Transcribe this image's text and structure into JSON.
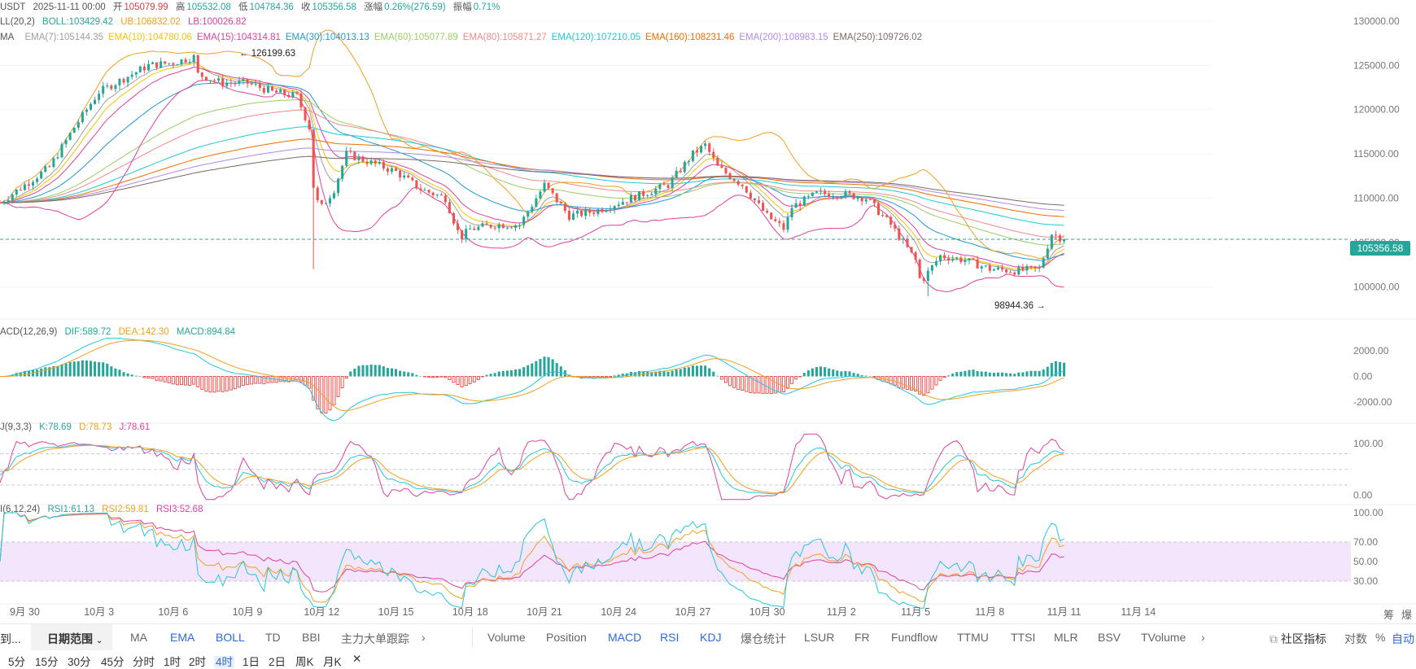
{
  "header": {
    "symbol": "USDT",
    "date": "2025-11-11 00:00",
    "open_label": "开",
    "open": "105079.99",
    "high_label": "高",
    "high": "105532.08",
    "low_label": "低",
    "low": "104784.36",
    "close_label": "收",
    "close": "105356.58",
    "change_label": "涨幅",
    "change": "0.26%(276.59)",
    "amp_label": "振幅",
    "amp": "0.71%"
  },
  "boll_legend": {
    "name": "LL(20,2)",
    "boll": "BOLL:103429.42",
    "ub": "UB:106832.02",
    "lb": "LB:100026.82"
  },
  "ema_legend": {
    "name": "MA",
    "items": [
      {
        "text": "EMA(7):105144.35",
        "color": "#9e9e9e"
      },
      {
        "text": "EMA(10):104780.06",
        "color": "#f5c400"
      },
      {
        "text": "EMA(15):104314.81",
        "color": "#e040a0"
      },
      {
        "text": "EMA(30):104013.13",
        "color": "#1e9bd6"
      },
      {
        "text": "EMA(60):105077.89",
        "color": "#9ccc65"
      },
      {
        "text": "EMA(80):105871.27",
        "color": "#ef8a8a"
      },
      {
        "text": "EMA(120):107210.05",
        "color": "#1fc8d4"
      },
      {
        "text": "EMA(160):108231.46",
        "color": "#ef6c00"
      },
      {
        "text": "EMA(200):108983.15",
        "color": "#b388eb"
      },
      {
        "text": "EMA(250):109726.02",
        "color": "#7b6a63"
      }
    ]
  },
  "macd_legend": {
    "name": "ACD(12,26,9)",
    "dif": "DIF:589.72",
    "dea": "DEA:142.30",
    "macd": "MACD:894.84"
  },
  "kdj_legend": {
    "name": "J(9,3,3)",
    "k": "K:78.69",
    "d": "D:78.73",
    "j": "J:78.61"
  },
  "rsi_legend": {
    "name": "I(6,12,24)",
    "rsi1": "RSI1:61.13",
    "rsi2": "RSI2:59.81",
    "rsi3": "RSI3:52.68"
  },
  "annotations": {
    "high_label": "← 126199.63",
    "low_label": "98944.36 →",
    "last_price": "105356.58"
  },
  "chart_data": {
    "type": "candlestick",
    "interval": "4h",
    "x_tick_labels": [
      "9月 30",
      "10月 3",
      "10月 6",
      "10月 9",
      "10月 12",
      "10月 15",
      "10月 18",
      "10月 21",
      "10月 24",
      "10月 27",
      "10月 30",
      "11月 2",
      "11月 5",
      "11月 8",
      "11月 11",
      "11月 14"
    ],
    "x_tick_days": [
      0,
      3,
      6,
      9,
      12,
      15,
      18,
      21,
      24,
      27,
      30,
      33,
      36,
      39,
      42,
      45
    ],
    "x_range_days": [
      -1.0,
      48.0
    ],
    "price_axis": {
      "ticks": [
        "130000.00",
        "125000.00",
        "120000.00",
        "115000.00",
        "110000.00",
        "105000.00",
        "100000.00"
      ],
      "ylim": [
        97000,
        131000
      ]
    },
    "macd_axis": {
      "ticks": [
        "2000.00",
        "0.00",
        "-2000.00"
      ],
      "ylim": [
        -3000,
        3000
      ]
    },
    "kdj_axis": {
      "ticks": [
        "100.00",
        "0.00"
      ],
      "ylim": [
        -10,
        120
      ]
    },
    "rsi_axis": {
      "ticks": [
        "100.00",
        "70.00",
        "50.00",
        "30.00"
      ],
      "ylim": [
        10,
        100
      ]
    },
    "price_keypoints_days": [
      -1,
      0,
      1,
      2,
      3,
      4,
      5,
      6,
      6.9,
      7,
      8,
      9,
      10,
      11,
      11.5,
      11.7,
      12,
      12.5,
      13,
      14,
      15,
      16,
      17,
      17.6,
      18,
      19,
      20,
      21,
      22,
      23,
      24,
      25,
      26,
      27,
      27.5,
      28,
      29,
      30,
      30.7,
      31,
      32,
      33,
      34,
      35,
      36,
      36.2,
      37,
      38,
      39,
      40,
      41,
      41.5,
      42
    ],
    "price_keypoints": [
      109500,
      111500,
      113500,
      118000,
      122000,
      123500,
      125000,
      125300,
      126000,
      124000,
      123000,
      123000,
      122000,
      121500,
      118000,
      110000,
      109000,
      111000,
      115000,
      114000,
      113000,
      111000,
      110000,
      105500,
      106500,
      107000,
      107000,
      111500,
      108000,
      108500,
      109500,
      110500,
      111500,
      115000,
      116000,
      113500,
      111500,
      108000,
      106500,
      109000,
      110500,
      110500,
      110000,
      107000,
      103000,
      100500,
      103500,
      103000,
      102000,
      101800,
      102000,
      106000,
      105356
    ],
    "ema_period_bars": [
      7,
      10,
      15,
      30,
      60,
      80,
      120,
      160,
      200,
      250
    ],
    "ema_colors": [
      "#9e9e9e",
      "#f5c400",
      "#e040a0",
      "#1e9bd6",
      "#9ccc65",
      "#ef8a8a",
      "#1fc8d4",
      "#ef6c00",
      "#b388eb",
      "#7b6a63"
    ],
    "last_close": 105356.58,
    "period_high": 126199.63,
    "period_low": 98944.36,
    "rsi_band": [
      30,
      70
    ],
    "kdj_guides": [
      20,
      50,
      80
    ]
  },
  "bottom": {
    "left_cut": "到...",
    "range": "日期范围",
    "indicators_main": [
      "MA",
      "EMA",
      "BOLL",
      "TD",
      "BBI",
      "主力大单跟踪"
    ],
    "indicators_main_active": [
      false,
      true,
      true,
      false,
      false,
      false
    ],
    "indicators_sub": [
      "Volume",
      "Position",
      "MACD",
      "RSI",
      "KDJ",
      "爆仓统计",
      "LSUR",
      "FR",
      "Fundflow",
      "TTMU",
      "TTSI",
      "MLR",
      "BSV",
      "TVolume"
    ],
    "indicators_sub_active": [
      false,
      false,
      true,
      true,
      true,
      false,
      false,
      false,
      false,
      false,
      false,
      false,
      false,
      false
    ],
    "community": "社区指标",
    "log_label": "对数",
    "percent_label": "%",
    "auto_label": "自动",
    "corner_a": "筹",
    "corner_b": "爆"
  },
  "timeframes": {
    "items": [
      "5分",
      "15分",
      "30分",
      "45分",
      "分时",
      "1时",
      "2时",
      "4时",
      "1日",
      "2日",
      "周K",
      "月K"
    ],
    "selected": "4时",
    "close": "✕"
  }
}
